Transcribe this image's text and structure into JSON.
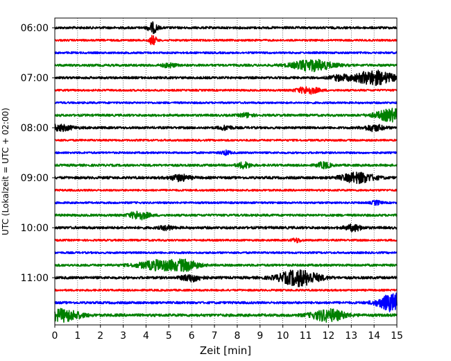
{
  "chart_data": {
    "type": "line",
    "subtype": "helicorder",
    "xlabel": "Zeit  [min]",
    "ylabel": "UTC (Lokalzeit = UTC + 02:00)",
    "xlim": [
      0,
      15
    ],
    "x_ticks": [
      0,
      1,
      2,
      3,
      4,
      5,
      6,
      7,
      8,
      9,
      10,
      11,
      12,
      13,
      14,
      15
    ],
    "x_tick_labels": [
      "0",
      "1",
      "2",
      "3",
      "4",
      "5",
      "6",
      "7",
      "8",
      "9",
      "10",
      "11",
      "12",
      "13",
      "14",
      "15"
    ],
    "y_tick_labels": [
      "06:00",
      "07:00",
      "08:00",
      "09:00",
      "10:00",
      "11:00"
    ],
    "trace_minutes": 15,
    "traces_per_hour": 4,
    "x_grid": "dotted vertical lines at each minute",
    "series": [
      {
        "start": "06:00",
        "color": "#000000",
        "amplitude": 0.12,
        "events": [
          [
            4.3,
            0.15,
            0.5
          ]
        ]
      },
      {
        "start": "06:15",
        "color": "#ff0000",
        "amplitude": 0.1,
        "events": [
          [
            4.3,
            0.12,
            0.45
          ]
        ]
      },
      {
        "start": "06:30",
        "color": "#0000ff",
        "amplitude": 0.1,
        "events": []
      },
      {
        "start": "06:45",
        "color": "#008000",
        "amplitude": 0.12,
        "events": [
          [
            11.3,
            0.6,
            0.55
          ],
          [
            5.0,
            0.2,
            0.2
          ]
        ]
      },
      {
        "start": "07:00",
        "color": "#000000",
        "amplitude": 0.12,
        "events": [
          [
            14.0,
            0.6,
            0.7
          ],
          [
            12.5,
            0.3,
            0.25
          ]
        ]
      },
      {
        "start": "07:15",
        "color": "#ff0000",
        "amplitude": 0.1,
        "events": [
          [
            11.1,
            0.35,
            0.35
          ]
        ]
      },
      {
        "start": "07:30",
        "color": "#0000ff",
        "amplitude": 0.1,
        "events": []
      },
      {
        "start": "07:45",
        "color": "#008000",
        "amplitude": 0.12,
        "events": [
          [
            14.8,
            0.5,
            0.6
          ],
          [
            8.4,
            0.2,
            0.2
          ]
        ]
      },
      {
        "start": "08:00",
        "color": "#000000",
        "amplitude": 0.12,
        "events": [
          [
            0.2,
            0.4,
            0.3
          ],
          [
            14.0,
            0.3,
            0.3
          ],
          [
            7.5,
            0.2,
            0.2
          ]
        ]
      },
      {
        "start": "08:15",
        "color": "#ff0000",
        "amplitude": 0.1,
        "events": []
      },
      {
        "start": "08:30",
        "color": "#0000ff",
        "amplitude": 0.1,
        "events": [
          [
            7.5,
            0.15,
            0.2
          ]
        ]
      },
      {
        "start": "08:45",
        "color": "#008000",
        "amplitude": 0.12,
        "events": [
          [
            8.3,
            0.2,
            0.3
          ],
          [
            11.8,
            0.2,
            0.3
          ]
        ]
      },
      {
        "start": "09:00",
        "color": "#000000",
        "amplitude": 0.13,
        "events": [
          [
            13.3,
            0.5,
            0.5
          ],
          [
            5.5,
            0.3,
            0.3
          ]
        ]
      },
      {
        "start": "09:15",
        "color": "#ff0000",
        "amplitude": 0.1,
        "events": []
      },
      {
        "start": "09:30",
        "color": "#0000ff",
        "amplitude": 0.1,
        "events": [
          [
            14.1,
            0.15,
            0.2
          ]
        ]
      },
      {
        "start": "09:45",
        "color": "#008000",
        "amplitude": 0.12,
        "events": [
          [
            3.7,
            0.3,
            0.4
          ]
        ]
      },
      {
        "start": "10:00",
        "color": "#000000",
        "amplitude": 0.13,
        "events": [
          [
            13.1,
            0.25,
            0.3
          ],
          [
            4.9,
            0.2,
            0.2
          ]
        ]
      },
      {
        "start": "10:15",
        "color": "#ff0000",
        "amplitude": 0.1,
        "events": [
          [
            10.6,
            0.15,
            0.2
          ]
        ]
      },
      {
        "start": "10:30",
        "color": "#0000ff",
        "amplitude": 0.1,
        "events": []
      },
      {
        "start": "10:45",
        "color": "#008000",
        "amplitude": 0.12,
        "events": [
          [
            4.7,
            0.7,
            0.5
          ],
          [
            5.8,
            0.35,
            0.4
          ]
        ]
      },
      {
        "start": "11:00",
        "color": "#000000",
        "amplitude": 0.13,
        "events": [
          [
            10.7,
            0.6,
            0.8
          ],
          [
            6.0,
            0.3,
            0.35
          ]
        ]
      },
      {
        "start": "11:15",
        "color": "#ff0000",
        "amplitude": 0.1,
        "events": []
      },
      {
        "start": "11:30",
        "color": "#0000ff",
        "amplitude": 0.12,
        "events": [
          [
            14.9,
            0.5,
            0.9
          ]
        ]
      },
      {
        "start": "11:45",
        "color": "#008000",
        "amplitude": 0.14,
        "events": [
          [
            0.4,
            0.5,
            0.6
          ],
          [
            12.0,
            0.5,
            0.6
          ]
        ]
      }
    ]
  }
}
